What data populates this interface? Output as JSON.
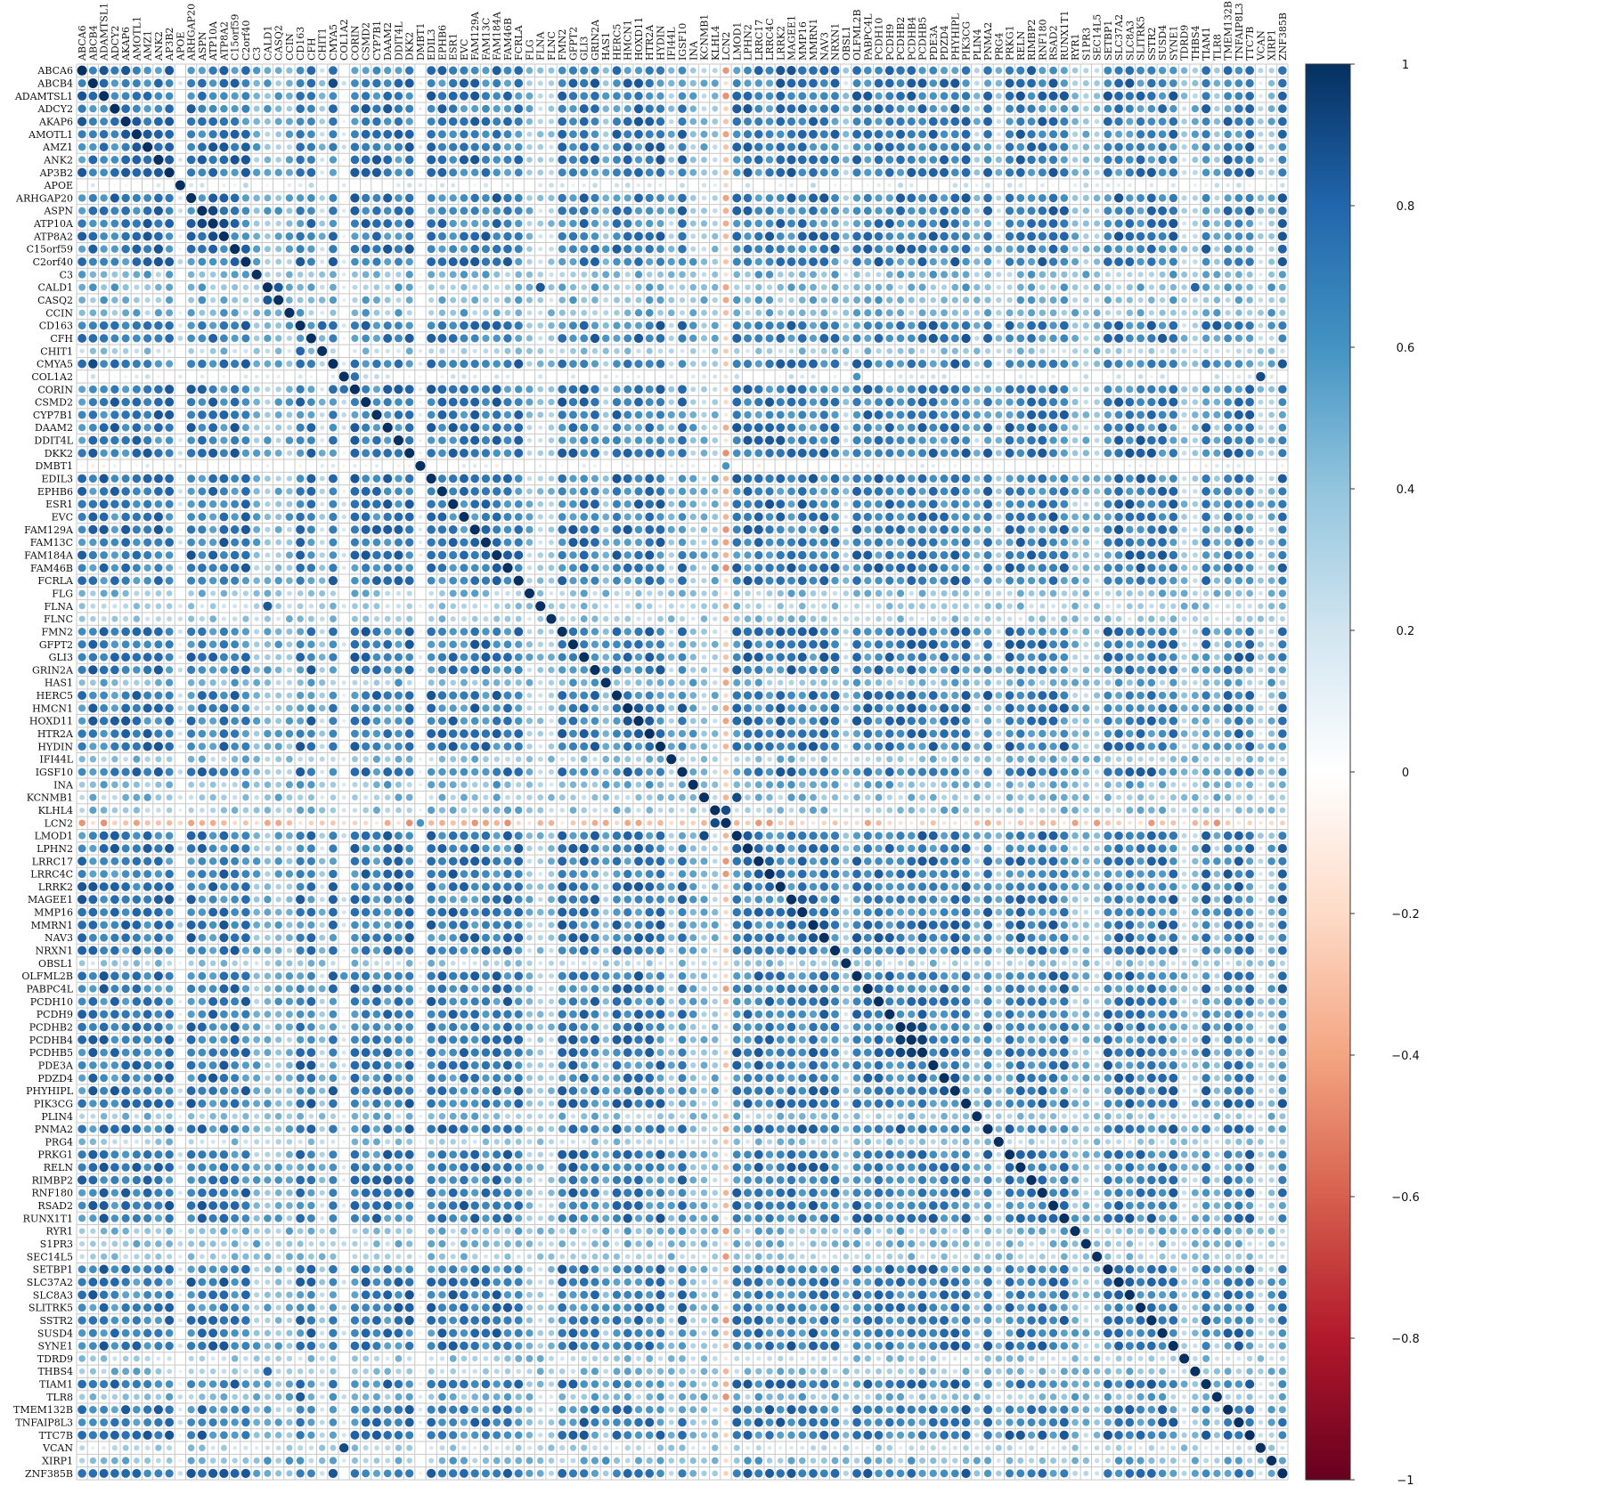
{
  "chart_data": {
    "type": "heatmap",
    "subtype": "correlation-circles",
    "genes": [
      "ABCA6",
      "ABCB4",
      "ADAMTSL1",
      "ADCY2",
      "AKAP6",
      "AMOTL1",
      "AMZ1",
      "ANK2",
      "AP3B2",
      "APOE",
      "ARHGAP20",
      "ASPN",
      "ATP10A",
      "ATP8A2",
      "C15orf59",
      "C2orf40",
      "C3",
      "CALD1",
      "CASQ2",
      "CCIN",
      "CD163",
      "CFH",
      "CHIT1",
      "CMYA5",
      "COL1A2",
      "CORIN",
      "CSMD2",
      "CYP7B1",
      "DAAM2",
      "DDIT4L",
      "DKK2",
      "DMBT1",
      "EDIL3",
      "EPHB6",
      "ESR1",
      "EVC",
      "FAM129A",
      "FAM13C",
      "FAM184A",
      "FAM46B",
      "FCRLA",
      "FLG",
      "FLNA",
      "FLNC",
      "FMN2",
      "GFPT2",
      "GLI3",
      "GRIN2A",
      "HAS1",
      "HERC5",
      "HMCN1",
      "HOXD11",
      "HTR2A",
      "HYDIN",
      "IFI44L",
      "IGSF10",
      "INA",
      "KCNMB1",
      "KLHL4",
      "LCN2",
      "LMOD1",
      "LPHN2",
      "LRRC17",
      "LRRC4C",
      "LRRK2",
      "MAGEE1",
      "MMP16",
      "MMRN1",
      "NAV3",
      "NRXN1",
      "OBSL1",
      "OLFML2B",
      "PABPC4L",
      "PCDH10",
      "PCDH9",
      "PCDHB2",
      "PCDHB4",
      "PCDHB5",
      "PDE3A",
      "PDZD4",
      "PHYHIPL",
      "PIK3CG",
      "PLIN4",
      "PNMA2",
      "PRG4",
      "PRKG1",
      "RELN",
      "RIMBP2",
      "RNF180",
      "RSAD2",
      "RUNX1T1",
      "RYR1",
      "S1PR3",
      "SEC14L5",
      "SETBP1",
      "SLC37A2",
      "SLC8A3",
      "SLITRK5",
      "SSTR2",
      "SUSD4",
      "SYNE1",
      "TDRD9",
      "THBS4",
      "TIAM1",
      "TLR8",
      "TMEM132B",
      "TNFAIP8L3",
      "TTC7B",
      "VCAN",
      "XIRP1",
      "ZNF385B"
    ],
    "low_rows": {
      "APOE": 0.12,
      "COL1A2": 0.1,
      "DMBT1": 0.02,
      "LCN2": -0.3
    },
    "mid_rows": {
      "C3": 0.45,
      "CALD1": 0.45,
      "CASQ2": 0.45,
      "CCIN": 0.45,
      "CHIT1": 0.35,
      "FLG": 0.4,
      "FLNA": 0.35,
      "FLNC": 0.35,
      "HAS1": 0.45,
      "IFI44L": 0.4,
      "INA": 0.45,
      "KCNMB1": 0.4,
      "KLHL4": 0.4,
      "OBSL1": 0.35,
      "PLIN4": 0.4,
      "PRG4": 0.35,
      "RYR1": 0.45,
      "S1PR3": 0.4,
      "SEC14L5": 0.35,
      "TDRD9": 0.35,
      "THBS4": 0.4,
      "TLR8": 0.45,
      "VCAN": 0.3,
      "XIRP1": 0.45
    },
    "default_r": 0.7,
    "pairs": [
      [
        "LCN2",
        "LMOD1",
        -0.35
      ],
      [
        "LCN2",
        "CALD1",
        -0.4
      ],
      [
        "LCN2",
        "FLNA",
        -0.35
      ],
      [
        "LCN2",
        "CASQ2",
        -0.4
      ],
      [
        "LCN2",
        "EVC",
        -0.35
      ],
      [
        "LCN2",
        "RNF180",
        -0.35
      ],
      [
        "LCN2",
        "THBS4",
        -0.35
      ],
      [
        "LCN2",
        "AMZ1",
        -0.3
      ],
      [
        "LCN2",
        "ANK2",
        -0.3
      ],
      [
        "LCN2",
        "AKAP6",
        -0.3
      ],
      [
        "LCN2",
        "SYNE1",
        -0.3
      ],
      [
        "LCN2",
        "RELN",
        -0.3
      ],
      [
        "LCN2",
        "SETBP1",
        -0.3
      ],
      [
        "LCN2",
        "ESR1",
        -0.3
      ],
      [
        "LCN2",
        "KCNMB1",
        -0.35
      ],
      [
        "LCN2",
        "KLHL4",
        0.9
      ],
      [
        "LCN2",
        "DMBT1",
        0.6
      ],
      [
        "COL1A2",
        "VCAN",
        0.9
      ],
      [
        "COL1A2",
        "CORIN",
        0.75
      ],
      [
        "COL1A2",
        "OLFML2B",
        0.6
      ],
      [
        "ASPN",
        "ATP10A",
        0.92
      ],
      [
        "ATP10A",
        "ATP8A2",
        0.9
      ],
      [
        "PCDHB2",
        "PCDHB4",
        0.95
      ],
      [
        "PCDHB4",
        "PCDHB5",
        0.95
      ],
      [
        "PCDHB2",
        "PCDHB5",
        0.92
      ],
      [
        "KCNMB1",
        "LMOD1",
        0.9
      ],
      [
        "CALD1",
        "FLNA",
        0.85
      ],
      [
        "CASQ2",
        "CALD1",
        0.85
      ],
      [
        "CMYA5",
        "ABCB4",
        0.9
      ],
      [
        "CD163",
        "TIAM1",
        0.8
      ],
      [
        "CD163",
        "PIK3CG",
        0.75
      ],
      [
        "TLR8",
        "CD163",
        0.85
      ],
      [
        "CHIT1",
        "CD163",
        0.8
      ],
      [
        "RNF180",
        "SYNE1",
        0.85
      ],
      [
        "RUNX1T1",
        "HMCN1",
        0.85
      ],
      [
        "SETBP1",
        "PCDH9",
        0.85
      ],
      [
        "THBS4",
        "CALD1",
        0.8
      ]
    ],
    "colorbar": {
      "ticks": [
        "1",
        "0.8",
        "0.6",
        "0.4",
        "0.2",
        "0",
        "−0.2",
        "−0.4",
        "−0.6",
        "−0.8",
        "−1"
      ],
      "stops": [
        "#053061",
        "#2166ac",
        "#4393c3",
        "#92c5de",
        "#d1e5f0",
        "#ffffff",
        "#fddbc7",
        "#f4a582",
        "#d6604d",
        "#b2182b",
        "#67001f"
      ]
    },
    "grid_color": "#c9c9c9",
    "legend_placement": "right"
  }
}
